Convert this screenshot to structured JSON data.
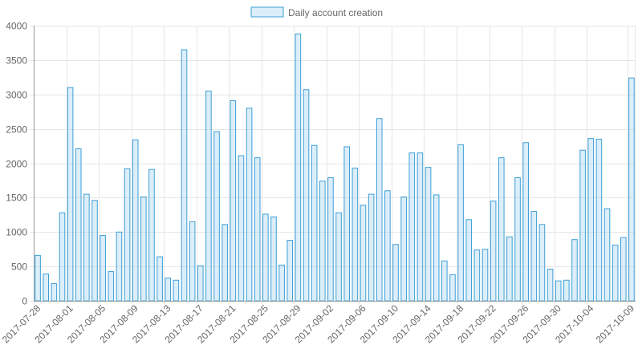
{
  "chart_data": {
    "type": "bar",
    "legend": {
      "label": "Daily account creation",
      "position": "top"
    },
    "colors": {
      "fill": "#d6ecfa",
      "stroke": "#3ea0d6"
    },
    "grid": true,
    "ylim": [
      0,
      4000
    ],
    "yticks": [
      "0",
      "500",
      "1000",
      "1500",
      "2000",
      "2500",
      "3000",
      "3500",
      "4000"
    ],
    "categories": [
      "2017-07-28",
      "2017-07-29",
      "2017-07-30",
      "2017-07-31",
      "2017-08-01",
      "2017-08-02",
      "2017-08-03",
      "2017-08-04",
      "2017-08-05",
      "2017-08-06",
      "2017-08-07",
      "2017-08-08",
      "2017-08-09",
      "2017-08-10",
      "2017-08-11",
      "2017-08-12",
      "2017-08-13",
      "2017-08-14",
      "2017-08-15",
      "2017-08-16",
      "2017-08-17",
      "2017-08-18",
      "2017-08-19",
      "2017-08-20",
      "2017-08-21",
      "2017-08-22",
      "2017-08-23",
      "2017-08-24",
      "2017-08-25",
      "2017-08-26",
      "2017-08-27",
      "2017-08-28",
      "2017-08-29",
      "2017-08-30",
      "2017-08-31",
      "2017-09-01",
      "2017-09-02",
      "2017-09-03",
      "2017-09-04",
      "2017-09-05",
      "2017-09-06",
      "2017-09-07",
      "2017-09-08",
      "2017-09-09",
      "2017-09-10",
      "2017-09-11",
      "2017-09-12",
      "2017-09-13",
      "2017-09-14",
      "2017-09-15",
      "2017-09-16",
      "2017-09-17",
      "2017-09-18",
      "2017-09-19",
      "2017-09-20",
      "2017-09-21",
      "2017-09-22",
      "2017-09-23",
      "2017-09-24",
      "2017-09-25",
      "2017-09-26",
      "2017-09-27",
      "2017-09-28",
      "2017-09-29",
      "2017-09-30",
      "2017-10-01",
      "2017-10-02",
      "2017-10-03",
      "2017-10-04",
      "2017-10-05",
      "2017-10-06",
      "2017-10-07",
      "2017-10-08",
      "2017-10-09"
    ],
    "xtick_labels": [
      "2017-07-28",
      "2017-08-01",
      "2017-08-05",
      "2017-08-09",
      "2017-08-13",
      "2017-08-17",
      "2017-08-21",
      "2017-08-25",
      "2017-08-29",
      "2017-09-02",
      "2017-09-06",
      "2017-09-10",
      "2017-09-14",
      "2017-09-18",
      "2017-09-22",
      "2017-09-26",
      "2017-09-30",
      "2017-10-04",
      "2017-10-09"
    ],
    "values": [
      660,
      390,
      250,
      1280,
      3100,
      2210,
      1550,
      1460,
      950,
      425,
      1000,
      1920,
      2340,
      1510,
      1910,
      640,
      330,
      300,
      3650,
      1150,
      510,
      3050,
      2460,
      1110,
      2910,
      2110,
      2800,
      2080,
      1260,
      1220,
      520,
      880,
      3880,
      3070,
      2260,
      1740,
      1790,
      1280,
      2240,
      1930,
      1390,
      1550,
      2650,
      1600,
      820,
      1510,
      2150,
      2150,
      1940,
      1540,
      580,
      380,
      2270,
      1180,
      740,
      750,
      1450,
      2080,
      930,
      1790,
      2300,
      1300,
      1110,
      460,
      290,
      300,
      890,
      2190,
      2360,
      2350,
      1340,
      810,
      920,
      3240
    ]
  }
}
